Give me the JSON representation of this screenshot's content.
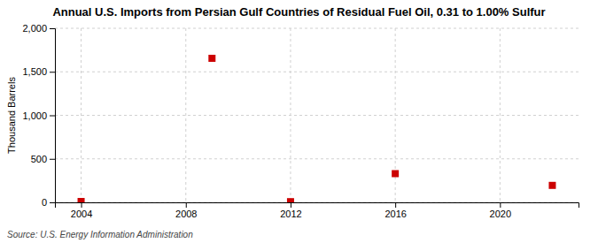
{
  "chart_data": {
    "type": "scatter",
    "title": "Annual U.S. Imports from Persian Gulf Countries of Residual Fuel Oil, 0.31 to 1.00% Sulfur",
    "y_label": "Thousand Barrels",
    "source": "Source: U.S. Energy Information Administration",
    "x": [
      2004,
      2009,
      2012,
      2016,
      2022
    ],
    "values": [
      10,
      1655,
      8,
      330,
      195
    ],
    "color": "#cc0000",
    "marker": "square",
    "xlim": [
      2003,
      2023
    ],
    "xticks": [
      2004,
      2008,
      2012,
      2016,
      2020
    ],
    "ylim": [
      0,
      2000
    ],
    "yticks": [
      0,
      500,
      {
        "value": 1000,
        "label": "1,000"
      },
      {
        "value": 1500,
        "label": "1,500"
      },
      {
        "value": 2000,
        "label": "2,000"
      }
    ],
    "grid": true
  }
}
